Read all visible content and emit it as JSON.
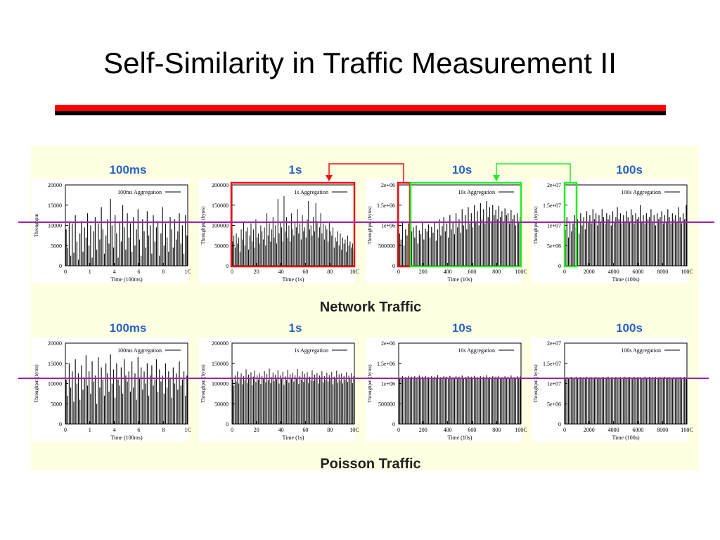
{
  "slide": {
    "title": "Self-Similarity in Traffic Measurement II"
  },
  "colors": {
    "accent_red": "#ff0000",
    "rule_black": "#000000",
    "panel_bg": "#ffffe1",
    "header_blue": "#2763c6",
    "reference_line": "#a020a8",
    "zoom_red": "#ee1111",
    "zoom_green": "#22ee22"
  },
  "sections": [
    {
      "caption": "Network Traffic",
      "headers": [
        "100ms",
        "1s",
        "10s",
        "100s"
      ]
    },
    {
      "caption": "Poisson Traffic",
      "headers": [
        "100ms",
        "1s",
        "10s",
        "100s"
      ]
    }
  ],
  "chart_data": [
    {
      "type": "bar",
      "section": "Network Traffic",
      "header": "100ms",
      "legend": "100ms Aggregation",
      "xlabel": "Time (100ms)",
      "ylabel": "Throughput",
      "xlim": [
        0,
        1000
      ],
      "x_ticks": [
        "0",
        "1",
        "4",
        "6",
        "8",
        "1C"
      ],
      "ylim": [
        0,
        20000
      ],
      "y_ticks": [
        "0",
        "5000",
        "10000",
        "15000",
        "20000"
      ],
      "values": [
        9000,
        4500,
        11000,
        2500,
        10500,
        3200,
        12500,
        6000,
        1500,
        8000,
        11000,
        3500,
        9500,
        7000,
        13000,
        5000,
        10000,
        2000,
        8500,
        12000,
        4000,
        10500,
        6500,
        14500,
        9000,
        3000,
        7500,
        11500,
        5500,
        16500,
        10000,
        4500,
        12500,
        8000,
        2000,
        11000,
        6000,
        15000,
        9500,
        4000,
        13000,
        7000,
        10500,
        3500,
        12000,
        5000,
        9000,
        14000,
        6500,
        2500,
        11500,
        8500,
        4500,
        13500,
        7500,
        10000,
        3000,
        12500,
        6000,
        9500,
        11000,
        2500,
        8000,
        14500,
        5000,
        10500,
        7000,
        3500,
        12000,
        9000,
        4500,
        11500,
        6500,
        8500,
        13000,
        5500,
        10000,
        3000,
        12500,
        7500
      ]
    },
    {
      "type": "bar",
      "section": "Network Traffic",
      "header": "1s",
      "legend": "1s Aggregation",
      "xlabel": "Time (1s)",
      "ylabel": "Throughput (bytes)",
      "xlim": [
        0,
        100
      ],
      "x_ticks": [
        "0",
        "20",
        "40",
        "60",
        "80",
        "10C"
      ],
      "ylim": [
        0,
        200000
      ],
      "y_ticks": [
        "0",
        "50000",
        "100000",
        "150000",
        "200000"
      ],
      "values": [
        60000,
        75000,
        45000,
        80000,
        55000,
        70000,
        35000,
        90000,
        65000,
        110000,
        50000,
        85000,
        95000,
        40000,
        75000,
        105000,
        60000,
        90000,
        45000,
        115000,
        70000,
        80000,
        55000,
        100000,
        85000,
        65000,
        95000,
        50000,
        130000,
        75000,
        105000,
        60000,
        90000,
        120000,
        70000,
        100000,
        55000,
        165000,
        80000,
        110000,
        95000,
        60000,
        175000,
        85000,
        120000,
        70000,
        100000,
        60000,
        130000,
        90000,
        75000,
        110000,
        95000,
        140000,
        80000,
        105000,
        65000,
        125000,
        85000,
        95000,
        70000,
        115000,
        160000,
        90000,
        100000,
        75000,
        120000,
        85000,
        155000,
        110000,
        70000,
        95000,
        130000,
        80000,
        105000,
        65000,
        100000,
        90000,
        60000,
        110000,
        85000,
        75000,
        95000,
        45000,
        70000,
        60000,
        85000,
        50000,
        80000,
        40000,
        70000,
        55000,
        65000,
        35000,
        75000,
        50000,
        60000,
        45000,
        55000,
        40000
      ]
    },
    {
      "type": "bar",
      "section": "Network Traffic",
      "header": "10s",
      "legend": "10s Aggregation",
      "xlabel": "Time (10s)",
      "ylabel": "Throughput (bytes)",
      "xlim": [
        0,
        1000
      ],
      "x_ticks": [
        "0",
        "200",
        "400",
        "600",
        "800",
        "100C"
      ],
      "ylim": [
        0,
        2000000
      ],
      "y_ticks": [
        "0",
        "500000",
        "1e+06",
        "1.5e+06",
        "2e+06"
      ],
      "values": [
        800000,
        650000,
        1100000,
        500000,
        900000,
        750000,
        1050000,
        600000,
        850000,
        950000,
        700000,
        1000000,
        550000,
        880000,
        780000,
        1080000,
        650000,
        920000,
        850000,
        1020000,
        700000,
        960000,
        820000,
        1100000,
        620000,
        900000,
        1150000,
        750000,
        980000,
        1200000,
        850000,
        1050000,
        700000,
        1250000,
        900000,
        1100000,
        780000,
        1300000,
        950000,
        1150000,
        820000,
        1400000,
        1000000,
        1250000,
        900000,
        1450000,
        1050000,
        1300000,
        950000,
        1500000,
        1100000,
        1350000,
        1000000,
        1550000,
        1150000,
        1400000,
        1050000,
        1600000,
        1200000,
        1450000,
        1100000,
        1500000,
        1250000,
        1380000,
        1150000,
        1480000,
        1200000,
        1350000,
        1100000,
        1420000,
        1250000,
        1300000,
        1050000,
        1380000,
        1150000,
        1250000,
        1000000,
        1300000,
        1100000,
        1200000
      ]
    },
    {
      "type": "bar",
      "section": "Network Traffic",
      "header": "100s",
      "legend": "100s Aggregation",
      "xlabel": "Time (100s)",
      "ylabel": "Throughput (bytes)",
      "xlim": [
        0,
        10000
      ],
      "x_ticks": [
        "0",
        "2000",
        "4000",
        "6000",
        "8000",
        "100C"
      ],
      "ylim": [
        0,
        20000000
      ],
      "y_ticks": [
        "0",
        "5e+06",
        "1e+07",
        "1.5e+07",
        "2e+07"
      ],
      "values": [
        9000000,
        12000000,
        7000000,
        11000000,
        8500000,
        10500000,
        12500000,
        9500000,
        11500000,
        8000000,
        13000000,
        10000000,
        12000000,
        9000000,
        13500000,
        11000000,
        12500000,
        10500000,
        14000000,
        11500000,
        13000000,
        10000000,
        12500000,
        11000000,
        14000000,
        12000000,
        10500000,
        13000000,
        11500000,
        12500000,
        10000000,
        13500000,
        11000000,
        12000000,
        14500000,
        11500000,
        13000000,
        10500000,
        12500000,
        11000000,
        13500000,
        12000000,
        11000000,
        14000000,
        12500000,
        10500000,
        13000000,
        11500000,
        12000000,
        15000000,
        11000000,
        12500000,
        10500000,
        13000000,
        11500000,
        12000000,
        14000000,
        11000000,
        12500000,
        10000000,
        13000000,
        11500000,
        12000000,
        13500000,
        10500000,
        12500000,
        11000000,
        14000000,
        12000000,
        10500000,
        13000000,
        11500000,
        12500000,
        11000000,
        14500000,
        12000000,
        10500000,
        13000000,
        11500000,
        15000000
      ]
    },
    {
      "type": "bar",
      "section": "Poisson Traffic",
      "header": "100ms",
      "legend": "100ms Aggregation",
      "xlabel": "Time (100ms)",
      "ylabel": "Throughput (bytes)",
      "xlim": [
        0,
        1000
      ],
      "x_ticks": [
        "0",
        "1",
        "4",
        "6",
        "8",
        "1C"
      ],
      "ylim": [
        0,
        20000
      ],
      "y_ticks": [
        "0",
        "5000",
        "10000",
        "15000",
        "20000"
      ],
      "values": [
        11000,
        7000,
        15000,
        9000,
        13000,
        5500,
        16000,
        10000,
        12500,
        6000,
        14500,
        8500,
        11500,
        17000,
        9500,
        13000,
        7500,
        15500,
        10500,
        12000,
        5000,
        16500,
        9000,
        14000,
        11000,
        7000,
        15000,
        12500,
        8000,
        17500,
        10000,
        13500,
        6500,
        15000,
        11000,
        9500,
        14000,
        7500,
        16000,
        12000,
        10500,
        13000,
        8000,
        15500,
        9000,
        12500,
        6000,
        16500,
        11500,
        14000,
        8500,
        13000,
        10000,
        15000,
        7000,
        12000,
        14500,
        9500,
        11000,
        16000,
        8000,
        13500,
        10500,
        12000,
        7500,
        15000,
        9000,
        13000,
        11500,
        6500,
        14000,
        10000,
        12500,
        8500,
        15500,
        9500,
        11000,
        13000,
        7000,
        12000
      ]
    },
    {
      "type": "bar",
      "section": "Poisson Traffic",
      "header": "1s",
      "legend": "1s Aggregation",
      "xlabel": "Time (1s)",
      "ylabel": "Throughput (bytes)",
      "xlim": [
        0,
        100
      ],
      "x_ticks": [
        "0",
        "20",
        "40",
        "60",
        "80",
        "10C"
      ],
      "ylim": [
        0,
        200000
      ],
      "y_ticks": [
        "0",
        "50000",
        "100000",
        "150000",
        "200000"
      ],
      "values": [
        110000,
        95000,
        120000,
        105000,
        130000,
        100000,
        115000,
        125000,
        98000,
        118000,
        108000,
        135000,
        102000,
        122000,
        112000,
        128000,
        96000,
        117000,
        132000,
        104000,
        121000,
        110000,
        126000,
        99000,
        119000,
        113000,
        131000,
        103000,
        124000,
        108000,
        137000,
        101000,
        116000,
        127000,
        106000,
        122000,
        111000,
        133000,
        100000,
        120000,
        114000,
        129000,
        97000,
        118000,
        109000,
        134000,
        102000,
        123000,
        112000,
        127000,
        105000,
        121000,
        115000,
        136000,
        99000,
        119000,
        110000,
        130000,
        104000,
        124000,
        113000,
        128000,
        101000,
        117000,
        108000,
        133000,
        106000,
        122000,
        111000,
        126000,
        100000,
        120000,
        116000,
        131000,
        103000,
        118000,
        109000,
        127000,
        105000,
        121000,
        112000,
        129000,
        98000,
        117000,
        114000,
        132000,
        102000,
        123000,
        107000,
        125000,
        100000,
        119000,
        110000,
        128000,
        104000,
        120000,
        113000,
        126000,
        101000,
        118000
      ]
    },
    {
      "type": "bar",
      "section": "Poisson Traffic",
      "header": "10s",
      "legend": "10s Aggregation",
      "xlabel": "Time (10s)",
      "ylabel": "Throughput (bytes)",
      "xlim": [
        0,
        1000
      ],
      "x_ticks": [
        "0",
        "200",
        "400",
        "600",
        "800",
        "100C"
      ],
      "ylim": [
        0,
        2000000
      ],
      "y_ticks": [
        "0",
        "500000",
        "1e+06",
        "1.5e+06",
        "2e+06"
      ],
      "values": [
        1150000,
        1120000,
        1180000,
        1140000,
        1160000,
        1130000,
        1190000,
        1150000,
        1170000,
        1120000,
        1180000,
        1140000,
        1160000,
        1200000,
        1130000,
        1170000,
        1150000,
        1190000,
        1120000,
        1160000,
        1140000,
        1180000,
        1130000,
        1170000,
        1150000,
        1210000,
        1140000,
        1160000,
        1120000,
        1180000,
        1150000,
        1170000,
        1130000,
        1190000,
        1140000,
        1160000,
        1150000,
        1180000,
        1120000,
        1170000,
        1140000,
        1200000,
        1130000,
        1160000,
        1150000,
        1180000,
        1140000,
        1170000,
        1120000,
        1190000,
        1150000,
        1160000,
        1130000,
        1180000,
        1140000,
        1170000,
        1150000,
        1210000,
        1120000,
        1160000,
        1140000,
        1180000,
        1130000,
        1170000,
        1150000,
        1190000,
        1140000,
        1160000,
        1120000,
        1180000,
        1150000,
        1170000,
        1130000,
        1200000,
        1140000,
        1160000,
        1150000,
        1180000,
        1120000,
        1170000
      ]
    },
    {
      "type": "bar",
      "section": "Poisson Traffic",
      "header": "100s",
      "legend": "100s Aggregation",
      "xlabel": "Time (100s)",
      "ylabel": "Throughput (bytes)",
      "xlim": [
        0,
        10000
      ],
      "x_ticks": [
        "0",
        "2000",
        "4000",
        "6000",
        "8000",
        "100C"
      ],
      "ylim": [
        0,
        20000000
      ],
      "y_ticks": [
        "0",
        "5e+06",
        "1e+07",
        "1.5e+07",
        "2e+07"
      ],
      "values": [
        11500000,
        11600000,
        11400000,
        11550000,
        11650000,
        11450000,
        11500000,
        11700000,
        11480000,
        11560000,
        11620000,
        11420000,
        11580000,
        11500000,
        11680000,
        11460000,
        11540000,
        11600000,
        11440000,
        11520000,
        11660000,
        11500000,
        11560000,
        11430000,
        11590000,
        11620000,
        11480000,
        11540000,
        11700000,
        11460000,
        11520000,
        11580000,
        11440000,
        11650000,
        11500000,
        11560000,
        11600000,
        11470000,
        11530000,
        11680000,
        11450000,
        11550000,
        11620000,
        11490000,
        11510000,
        11660000,
        11430000,
        11580000,
        11540000,
        11600000,
        11470000,
        11520000,
        11700000,
        11460000,
        11560000,
        11620000,
        11440000,
        11580000,
        11500000,
        11650000,
        11480000,
        11540000,
        11600000,
        11450000,
        11530000,
        11680000,
        11470000,
        11560000,
        11620000,
        11490000,
        11510000,
        11660000,
        11440000,
        11580000,
        11540000,
        11600000,
        11460000,
        11520000,
        11640000,
        11500000
      ]
    }
  ]
}
